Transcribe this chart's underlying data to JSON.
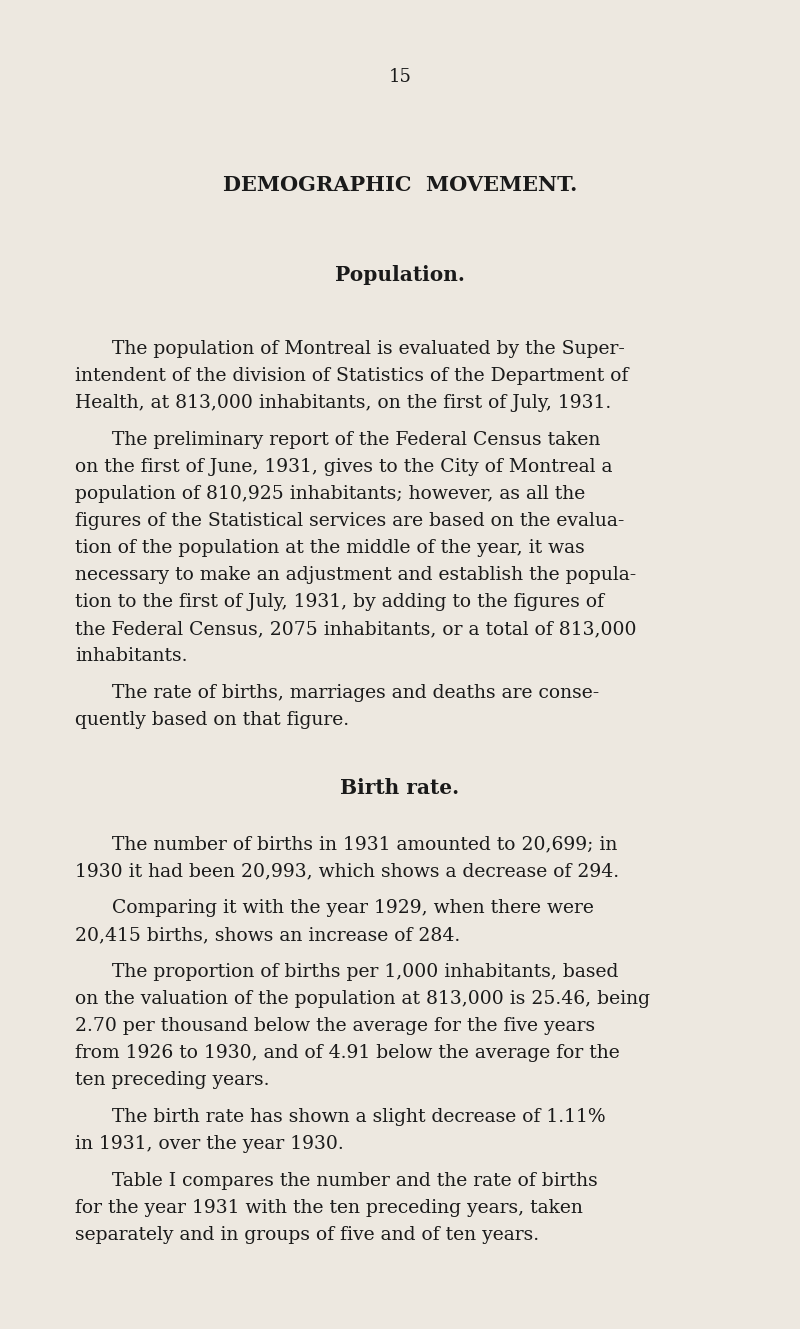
{
  "background_color": "#ede8e0",
  "page_number": "15",
  "title": "DEMOGRAPHIC  MOVEMENT.",
  "subtitle": "Population.",
  "body_paragraphs": [
    {
      "indent": true,
      "text": "The population of Montreal is evaluated by the Super-\nintendent of the division of Statistics of the Department of\nHealth, at 813,000 inhabitants, on the first of July, 1931."
    },
    {
      "indent": true,
      "text": "The preliminary report of the Federal Census taken\non the first of June, 1931, gives to the City of Montreal a\npopulation of 810,925 inhabitants; however, as all the\nfigures of the Statistical services are based on the evalua-\ntion of the population at the middle of the year, it was\nnecessary to make an adjustment and establish the popula-\ntion to the first of July, 1931, by adding to the figures of\nthe Federal Census, 2075 inhabitants, or a total of 813,000\ninhabitants."
    },
    {
      "indent": true,
      "text": "The rate of births, marriages and deaths are conse-\nquently based on that figure."
    },
    {
      "indent": false,
      "is_subheading": true,
      "text": "Birth rate."
    },
    {
      "indent": true,
      "text": "The number of births in 1931 amounted to 20,699; in\n1930 it had been 20,993, which shows a decrease of 294."
    },
    {
      "indent": true,
      "text": "Comparing it with the year 1929, when there were\n20,415 births, shows an increase of 284."
    },
    {
      "indent": true,
      "text": "The proportion of births per 1,000 inhabitants, based\non the valuation of the population at 813,000 is 25.46, being\n2.70 per thousand below the average for the five years\nfrom 1926 to 1930, and of 4.91 below the average for the\nten preceding years."
    },
    {
      "indent": true,
      "text": "The birth rate has shown a slight decrease of 1.11%\nin 1931, over the year 1930."
    },
    {
      "indent": true,
      "text": "Table I compares the number and the rate of births\nfor the year 1931 with the ten preceding years, taken\nseparately and in groups of five and of ten years."
    }
  ]
}
